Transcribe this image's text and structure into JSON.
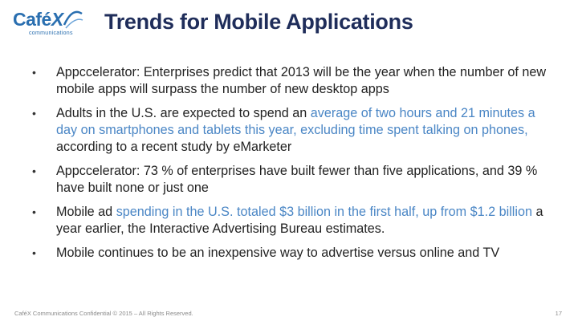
{
  "logo": {
    "word": "Café",
    "x": "X",
    "tagline": "communications"
  },
  "title": "Trends for Mobile Applications",
  "bullets": [
    {
      "parts": [
        {
          "text": "Appccelerator: Enterprises predict that 2013 will be the year when the number of new mobile apps will surpass the number of new desktop apps",
          "highlight": false
        }
      ]
    },
    {
      "parts": [
        {
          "text": "Adults in the U.S. are expected to spend an ",
          "highlight": false
        },
        {
          "text": "average of two hours and 21 minutes a day on smartphones and tablets this year, excluding time spent talking on phones,",
          "highlight": true
        },
        {
          "text": " according to a recent study by eMarketer",
          "highlight": false
        }
      ]
    },
    {
      "parts": [
        {
          "text": "Appccelerator: 73 % of enterprises have built fewer than five applications, and 39 % have built none or just one",
          "highlight": false
        }
      ]
    },
    {
      "parts": [
        {
          "text": "Mobile ad ",
          "highlight": false
        },
        {
          "text": "spending in the U.S. totaled $3 billion in the first half, up from $1.2 billion",
          "highlight": true
        },
        {
          "text": " a year earlier, the Interactive Advertising Bureau estimates.",
          "highlight": false
        }
      ]
    },
    {
      "parts": [
        {
          "text": "Mobile continues to be an inexpensive way to advertise versus online and TV",
          "highlight": false
        }
      ]
    }
  ],
  "footer": "CaféX Communications Confidential © 2015 – All Rights Reserved.",
  "page_number": "17",
  "colors": {
    "title": "#1f2d5a",
    "highlight": "#4a86c5",
    "logo": "#2a6fb0"
  }
}
